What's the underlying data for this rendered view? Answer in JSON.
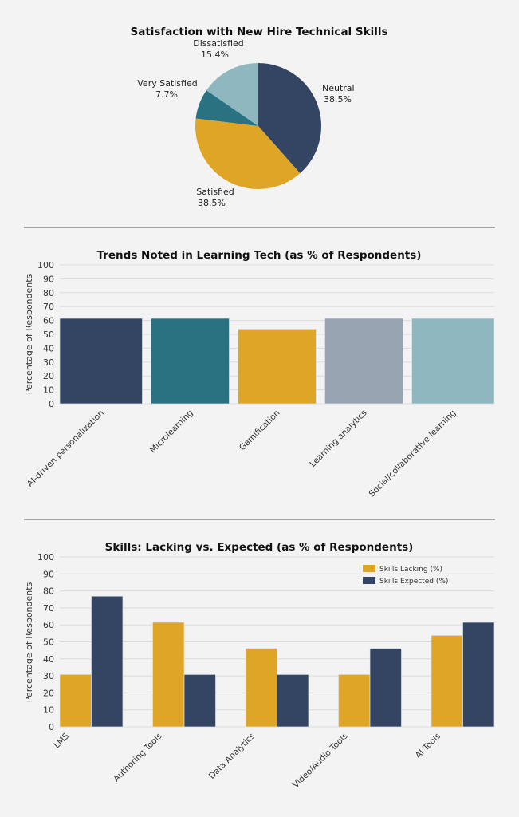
{
  "chart_data": [
    {
      "type": "pie",
      "title": "Satisfaction with New Hire Technical Skills",
      "slices": [
        {
          "label": "Neutral",
          "value": 38.5,
          "value_label": "38.5%",
          "color": "#344563"
        },
        {
          "label": "Satisfied",
          "value": 38.5,
          "value_label": "38.5%",
          "color": "#DEA527"
        },
        {
          "label": "Very Satisfied",
          "value": 7.7,
          "value_label": "7.7%",
          "color": "#2A7281"
        },
        {
          "label": "Dissatisfied",
          "value": 15.4,
          "value_label": "15.4%",
          "color": "#8FB7BF"
        }
      ]
    },
    {
      "type": "bar",
      "title": "Trends Noted in Learning Tech (as % of Respondents)",
      "xlabel": "",
      "ylabel": "Percentage of Respondents",
      "ylim": [
        0,
        100
      ],
      "yticks": [
        0,
        10,
        20,
        30,
        40,
        50,
        60,
        70,
        80,
        90,
        100
      ],
      "grid": true,
      "categories": [
        "AI-driven personalization",
        "Microlearning",
        "Gamification",
        "Learning analytics",
        "Social/collaborative learning"
      ],
      "values": [
        61.5,
        61.5,
        53.8,
        61.5,
        61.5
      ],
      "colors": [
        "#344563",
        "#2A7281",
        "#DEA527",
        "#99A4B3",
        "#8FB7BF"
      ]
    },
    {
      "type": "bar",
      "title": "Skills: Lacking vs. Expected (as % of Respondents)",
      "xlabel": "",
      "ylabel": "Percentage of Respondents",
      "ylim": [
        0,
        100
      ],
      "yticks": [
        0,
        10,
        20,
        30,
        40,
        50,
        60,
        70,
        80,
        90,
        100
      ],
      "grid": true,
      "legend": "top-right",
      "categories": [
        "LMS",
        "Authoring Tools",
        "Data Analytics",
        "Video/Audio Tools",
        "AI Tools"
      ],
      "series": [
        {
          "name": "Skills Lacking (%)",
          "values": [
            30.8,
            61.5,
            46.2,
            30.8,
            53.8
          ],
          "color": "#DEA527"
        },
        {
          "name": "Skills Expected (%)",
          "values": [
            76.9,
            30.8,
            30.8,
            46.2,
            61.5
          ],
          "color": "#344563"
        }
      ]
    }
  ]
}
